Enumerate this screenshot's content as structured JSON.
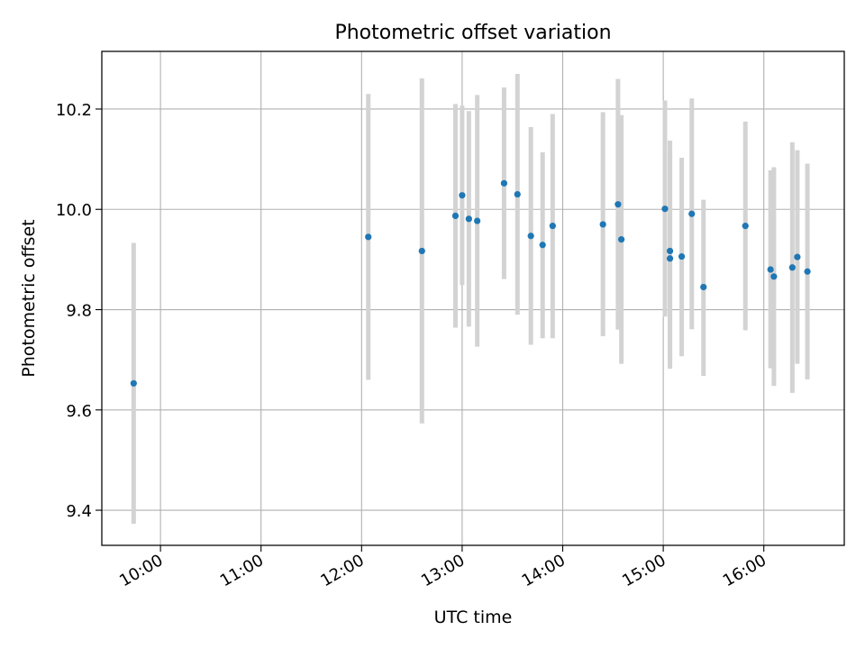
{
  "chart_data": {
    "type": "scatter",
    "title": "Photometric offset variation",
    "xlabel": "UTC time",
    "ylabel": "Photometric offset",
    "x_ticks": [
      "10:00",
      "11:00",
      "12:00",
      "13:00",
      "14:00",
      "15:00",
      "16:00"
    ],
    "y_ticks": [
      "9.4",
      "9.6",
      "9.8",
      "10.0",
      "10.2"
    ],
    "xlim": [
      "09:25",
      "16:48"
    ],
    "ylim": [
      9.33,
      10.315
    ],
    "grid": true,
    "colors": {
      "point": "#1f77b4",
      "errorbar": "#d3d3d3",
      "grid": "#b0b0b0"
    },
    "points": [
      {
        "x": "09:44",
        "y": 9.653,
        "yerr_low": 9.373,
        "yerr_high": 9.933
      },
      {
        "x": "12:04",
        "y": 9.945,
        "yerr_low": 9.66,
        "yerr_high": 10.23
      },
      {
        "x": "12:36",
        "y": 9.917,
        "yerr_low": 9.573,
        "yerr_high": 10.261
      },
      {
        "x": "12:56",
        "y": 9.987,
        "yerr_low": 9.764,
        "yerr_high": 10.21
      },
      {
        "x": "13:00",
        "y": 10.028,
        "yerr_low": 9.849,
        "yerr_high": 10.207
      },
      {
        "x": "13:04",
        "y": 9.981,
        "yerr_low": 9.766,
        "yerr_high": 10.196
      },
      {
        "x": "13:09",
        "y": 9.977,
        "yerr_low": 9.726,
        "yerr_high": 10.228
      },
      {
        "x": "13:25",
        "y": 10.052,
        "yerr_low": 9.861,
        "yerr_high": 10.243
      },
      {
        "x": "13:33",
        "y": 10.03,
        "yerr_low": 9.79,
        "yerr_high": 10.27
      },
      {
        "x": "13:41",
        "y": 9.947,
        "yerr_low": 9.73,
        "yerr_high": 10.164
      },
      {
        "x": "13:48",
        "y": 9.929,
        "yerr_low": 9.743,
        "yerr_high": 10.114
      },
      {
        "x": "13:54",
        "y": 9.967,
        "yerr_low": 9.743,
        "yerr_high": 10.19
      },
      {
        "x": "14:24",
        "y": 9.97,
        "yerr_low": 9.747,
        "yerr_high": 10.194
      },
      {
        "x": "14:33",
        "y": 10.01,
        "yerr_low": 9.76,
        "yerr_high": 10.26
      },
      {
        "x": "14:35",
        "y": 9.94,
        "yerr_low": 9.692,
        "yerr_high": 10.188
      },
      {
        "x": "15:01",
        "y": 10.001,
        "yerr_low": 9.786,
        "yerr_high": 10.217
      },
      {
        "x": "15:04",
        "y": 9.902,
        "yerr_low": 9.682,
        "yerr_high": 10.122
      },
      {
        "x": "15:04",
        "y": 9.917,
        "yerr_low": 9.697,
        "yerr_high": 10.137
      },
      {
        "x": "15:11",
        "y": 9.906,
        "yerr_low": 9.707,
        "yerr_high": 10.103
      },
      {
        "x": "15:17",
        "y": 9.991,
        "yerr_low": 9.761,
        "yerr_high": 10.221
      },
      {
        "x": "15:24",
        "y": 9.845,
        "yerr_low": 9.668,
        "yerr_high": 10.019
      },
      {
        "x": "15:49",
        "y": 9.967,
        "yerr_low": 9.759,
        "yerr_high": 10.175
      },
      {
        "x": "16:04",
        "y": 9.88,
        "yerr_low": 9.683,
        "yerr_high": 10.078
      },
      {
        "x": "16:06",
        "y": 9.866,
        "yerr_low": 9.648,
        "yerr_high": 10.084
      },
      {
        "x": "16:17",
        "y": 9.884,
        "yerr_low": 9.634,
        "yerr_high": 10.134
      },
      {
        "x": "16:20",
        "y": 9.905,
        "yerr_low": 9.692,
        "yerr_high": 10.118
      },
      {
        "x": "16:26",
        "y": 9.876,
        "yerr_low": 9.661,
        "yerr_high": 10.091
      }
    ]
  }
}
